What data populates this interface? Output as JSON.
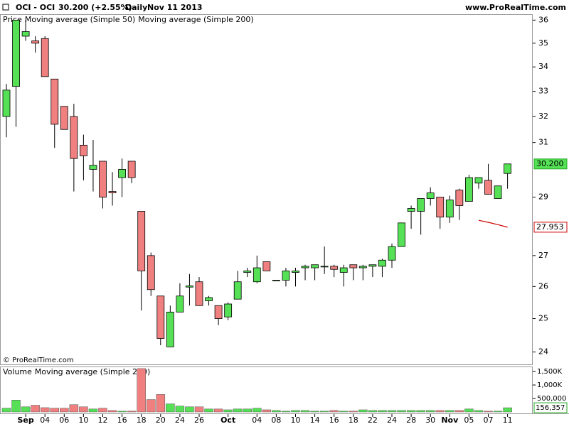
{
  "header": {
    "symbol": "OCI - OCI",
    "quote": "30.200 (+2.55%)",
    "period": "Daily",
    "date": "Nov 11 2013",
    "site": "www.ProRealTime.com"
  },
  "copyright": "© ProRealTime.com",
  "chart_data": [
    {
      "type": "candlestick",
      "name": "Price",
      "log_scale": true,
      "grid": false,
      "up_color": "#55e055",
      "down_color": "#f08080",
      "categories": [
        null,
        null,
        "Sep",
        null,
        "04",
        null,
        "06",
        null,
        "10",
        null,
        "12",
        null,
        "16",
        null,
        "18",
        null,
        "20",
        null,
        "24",
        null,
        "26",
        null,
        null,
        "Oct",
        null,
        null,
        "04",
        null,
        "08",
        null,
        "10",
        null,
        "14",
        null,
        "16",
        null,
        "18",
        null,
        "22",
        null,
        "24",
        null,
        "28",
        null,
        "30",
        null,
        "Nov",
        null,
        "05",
        null,
        "07",
        null,
        "11"
      ],
      "open": [
        32.0,
        33.2,
        35.3,
        35.1,
        35.2,
        33.5,
        32.4,
        32.0,
        30.9,
        30.0,
        30.3,
        29.2,
        29.7,
        30.3,
        28.5,
        27.0,
        25.7,
        24.15,
        25.2,
        25.98,
        26.15,
        25.55,
        25.4,
        25.05,
        25.6,
        26.45,
        26.15,
        26.8,
        26.2,
        26.2,
        26.45,
        26.6,
        26.6,
        26.65,
        26.65,
        26.45,
        26.7,
        26.6,
        26.65,
        26.65,
        26.85,
        27.3,
        28.5,
        28.5,
        28.95,
        29.0,
        28.3,
        29.25,
        28.85,
        29.5,
        29.6,
        28.95,
        29.85
      ],
      "high": [
        33.3,
        36.0,
        36.0,
        35.3,
        35.3,
        33.5,
        32.4,
        32.5,
        31.3,
        31.1,
        30.3,
        29.9,
        30.4,
        30.3,
        28.5,
        27.1,
        25.7,
        25.4,
        26.1,
        26.4,
        26.3,
        25.7,
        25.4,
        25.5,
        26.5,
        26.6,
        27.0,
        26.8,
        26.2,
        26.6,
        26.6,
        26.7,
        26.7,
        27.3,
        26.7,
        26.7,
        26.7,
        26.7,
        26.7,
        26.9,
        27.4,
        28.1,
        28.7,
        28.95,
        29.35,
        29.0,
        29.05,
        29.3,
        29.8,
        29.7,
        30.2,
        29.4,
        30.2
      ],
      "low": [
        31.2,
        31.6,
        35.1,
        34.6,
        33.6,
        30.8,
        31.5,
        29.2,
        29.6,
        29.2,
        28.6,
        28.7,
        29.0,
        29.5,
        25.25,
        25.7,
        24.2,
        24.15,
        25.2,
        25.4,
        25.4,
        25.4,
        24.8,
        24.95,
        25.6,
        26.3,
        26.1,
        26.5,
        26.2,
        26.0,
        26.0,
        26.2,
        26.2,
        26.4,
        26.3,
        26.0,
        26.2,
        26.2,
        26.3,
        26.3,
        26.6,
        27.3,
        27.9,
        27.7,
        28.7,
        27.9,
        28.1,
        28.2,
        28.85,
        29.3,
        29.1,
        28.95,
        29.3
      ],
      "close": [
        33.05,
        36.0,
        35.5,
        35.0,
        33.6,
        31.7,
        31.5,
        30.4,
        30.5,
        30.15,
        29.0,
        29.15,
        30.0,
        29.7,
        26.5,
        25.9,
        24.4,
        25.2,
        25.7,
        26.02,
        25.4,
        25.65,
        25.0,
        25.45,
        26.15,
        26.5,
        26.6,
        26.5,
        26.2,
        26.5,
        26.5,
        26.65,
        26.7,
        26.65,
        26.55,
        26.6,
        26.6,
        26.65,
        26.7,
        26.85,
        27.3,
        28.1,
        28.6,
        28.95,
        29.15,
        28.3,
        28.9,
        28.7,
        29.7,
        29.7,
        29.1,
        29.4,
        30.2
      ],
      "last_value_label": "30.200",
      "series": [
        {
          "name": "Moving average (Simple 50)",
          "color": "#cc0000",
          "values": [
            null,
            null,
            null,
            null,
            null,
            null,
            null,
            null,
            null,
            null,
            null,
            null,
            null,
            null,
            null,
            null,
            null,
            null,
            null,
            null,
            null,
            null,
            null,
            null,
            null,
            null,
            null,
            null,
            null,
            null,
            null,
            null,
            null,
            null,
            null,
            null,
            null,
            null,
            null,
            null,
            null,
            null,
            null,
            null,
            null,
            null,
            null,
            null,
            null,
            28.19,
            28.12,
            28.04,
            27.953
          ]
        },
        {
          "name": "Moving average (Simple 200)",
          "color": "#008000"
        }
      ],
      "ylim": [
        23.64,
        36.23
      ],
      "yticks": [
        24,
        25,
        26,
        27,
        29,
        31,
        32,
        33,
        34,
        35,
        36
      ]
    },
    {
      "type": "bar",
      "name": "Volume",
      "color": "#22bb22",
      "up_color": "#55e055",
      "down_color": "#f08080",
      "values": [
        140000,
        440000,
        190000,
        250000,
        160000,
        140000,
        140000,
        270000,
        190000,
        110000,
        140000,
        55000,
        30000,
        30000,
        1610000,
        460000,
        650000,
        300000,
        220000,
        190000,
        190000,
        110000,
        110000,
        80000,
        110000,
        110000,
        140000,
        80000,
        55000,
        30000,
        55000,
        55000,
        30000,
        30000,
        55000,
        30000,
        30000,
        80000,
        55000,
        55000,
        55000,
        55000,
        55000,
        55000,
        55000,
        55000,
        55000,
        55000,
        110000,
        55000,
        30000,
        30000,
        156357
      ],
      "last_value_label": "156,357",
      "series": [
        {
          "name": "Moving average (Simple 200)",
          "color": "#3333cc"
        }
      ],
      "ylim": [
        0,
        1660000
      ],
      "yticks": [
        {
          "value": 500000,
          "label": "500,000"
        },
        {
          "value": 1000000,
          "label": "1,000K"
        },
        {
          "value": 1500000,
          "label": "1,500K"
        }
      ]
    }
  ]
}
